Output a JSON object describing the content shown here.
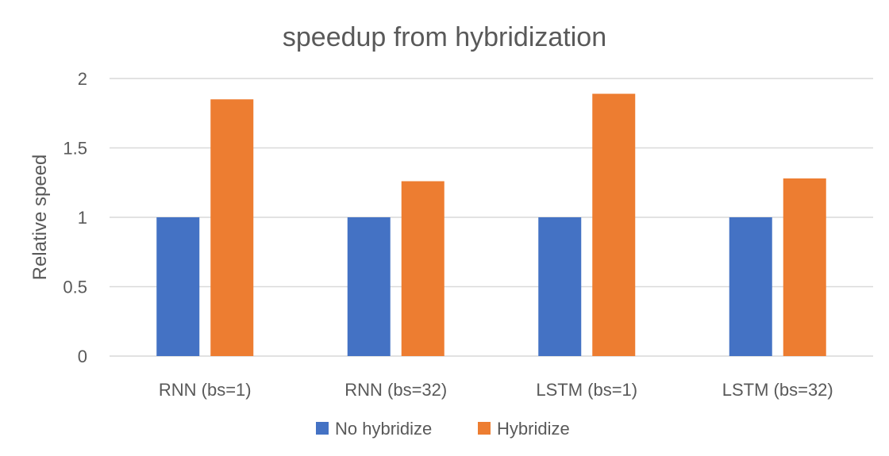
{
  "chart_data": {
    "type": "bar",
    "title": "speedup from hybridization",
    "xlabel": "",
    "ylabel": "Relative speed",
    "categories": [
      "RNN (bs=1)",
      "RNN (bs=32)",
      "LSTM (bs=1)",
      "LSTM (bs=32)"
    ],
    "series": [
      {
        "name": "No hybridize",
        "values": [
          1,
          1,
          1,
          1
        ],
        "color": "#4472C4"
      },
      {
        "name": "Hybridize",
        "values": [
          1.85,
          1.26,
          1.89,
          1.28
        ],
        "color": "#ED7D31"
      }
    ],
    "ylim": [
      0,
      2
    ],
    "yticks": [
      "0",
      "0.5",
      "1",
      "1.5",
      "2"
    ],
    "grid": true,
    "legend_position": "bottom"
  }
}
